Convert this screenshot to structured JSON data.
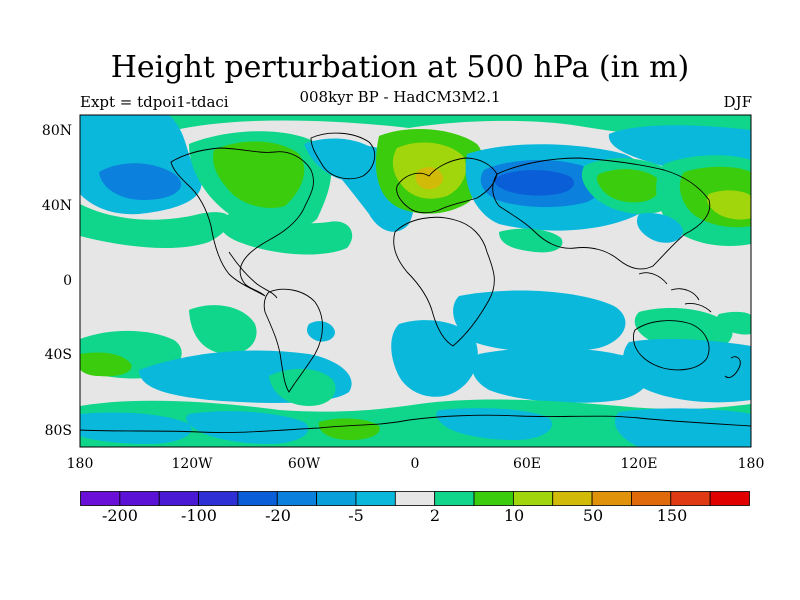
{
  "title": "Height perturbation at 500 hPa (in m)",
  "subtitle": "008kyr BP - HadCM3M2.1",
  "left_label": "Expt = tdpoi1-tdaci",
  "right_label": "DJF",
  "lat_ticks": [
    "80N",
    "40N",
    "0",
    "40S",
    "80S"
  ],
  "lon_ticks": [
    "180",
    "120W",
    "60W",
    "0",
    "60E",
    "120E",
    "180"
  ],
  "colorbar": {
    "colors": [
      "#6a0fd8",
      "#5b12d6",
      "#4a19d4",
      "#2f2fd6",
      "#0a5ed8",
      "#0b80dc",
      "#099fda",
      "#0ab8dc",
      "#e6e6e6",
      "#0fd68a",
      "#3ccc0e",
      "#a2d60c",
      "#d2ba08",
      "#e0920a",
      "#e06a0a",
      "#e03a14",
      "#e00000"
    ],
    "labels": [
      "-200",
      "-100",
      "-20",
      "-5",
      "2",
      "10",
      "50",
      "150"
    ]
  },
  "map_colors": {
    "background": "#e6e6e6",
    "light_blue": "#0ab8dc",
    "mid_blue": "#0b80dc",
    "deep_blue": "#0a5ed8",
    "green": "#0fd68a",
    "lime": "#3ccc0e",
    "yellow_green": "#a2d60c",
    "orange": "#d2ba08"
  }
}
